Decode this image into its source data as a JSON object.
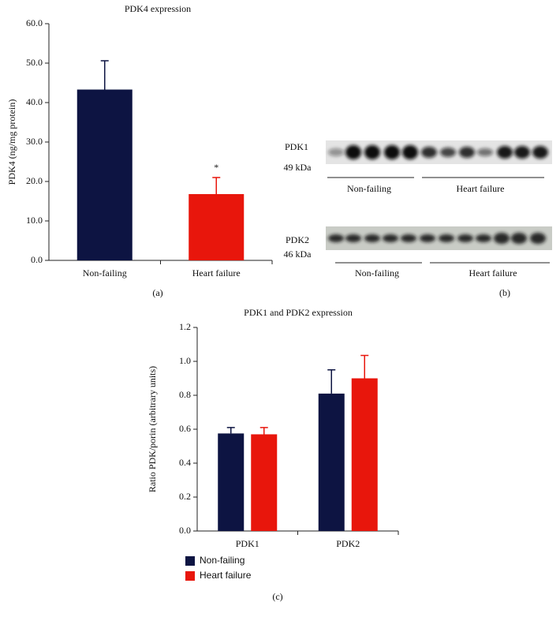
{
  "chart_data": [
    {
      "type": "bar",
      "title": "PDK4 expression",
      "ylabel": "PDK4 (ng/mg protein)",
      "categories": [
        "Non-failing",
        "Heart failure"
      ],
      "values": [
        43.3,
        16.8
      ],
      "errors": [
        7.3,
        4.2
      ],
      "colors": [
        "#0d1442",
        "#e8160c"
      ],
      "annotation": "*",
      "ylim": [
        0,
        60
      ],
      "yticks": [
        {
          "value": 0,
          "label": "0.0"
        },
        {
          "value": 10,
          "label": "10.0"
        },
        {
          "value": 20,
          "label": "20.0"
        },
        {
          "value": 30,
          "label": "30.0"
        },
        {
          "value": 40,
          "label": "40.0"
        },
        {
          "value": 50,
          "label": "50.0"
        },
        {
          "value": 60,
          "label": "60.0"
        }
      ],
      "panel": "(a)"
    },
    {
      "type": "bar",
      "title": "PDK1 and PDK2 expression",
      "ylabel": "Ratio PDK/porin (arbitrary units)",
      "categories": [
        "PDK1",
        "PDK2"
      ],
      "series": [
        {
          "name": "Non-failing",
          "color": "#0d1442",
          "values": [
            0.575,
            0.81
          ],
          "errors": [
            0.035,
            0.14
          ]
        },
        {
          "name": "Heart failure",
          "color": "#e8160c",
          "values": [
            0.57,
            0.9
          ],
          "errors": [
            0.04,
            0.135
          ]
        }
      ],
      "ylim": [
        0,
        1.2
      ],
      "yticks": [
        {
          "value": 0,
          "label": "0.0"
        },
        0.2,
        0.4,
        0.6,
        0.8,
        {
          "value": 1,
          "label": "1.0"
        },
        1.2
      ],
      "legend": "bottom-left",
      "panel": "(c)"
    }
  ],
  "blots": {
    "panel": "(b)",
    "top": {
      "protein": "PDK1",
      "size": "49 kDa",
      "groups": [
        "Non-failing",
        "Heart failure"
      ]
    },
    "bottom": {
      "protein": "PDK2",
      "size": "46 kDa",
      "groups": [
        "Non-failing",
        "Heart failure"
      ]
    }
  }
}
